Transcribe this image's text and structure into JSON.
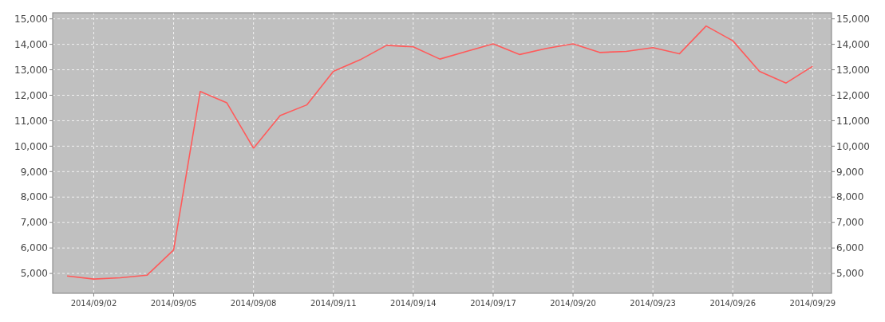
{
  "chart_data": {
    "type": "line",
    "x": [
      "2014-09-01",
      "2014-09-02",
      "2014-09-03",
      "2014-09-04",
      "2014-09-05",
      "2014-09-06",
      "2014-09-07",
      "2014-09-08",
      "2014-09-09",
      "2014-09-10",
      "2014-09-11",
      "2014-09-12",
      "2014-09-13",
      "2014-09-14",
      "2014-09-15",
      "2014-09-16",
      "2014-09-17",
      "2014-09-18",
      "2014-09-19",
      "2014-09-20",
      "2014-09-21",
      "2014-09-22",
      "2014-09-23",
      "2014-09-24",
      "2014-09-25",
      "2014-09-26",
      "2014-09-27",
      "2014-09-28",
      "2014-09-29"
    ],
    "series": [
      {
        "color": "#ff5a5a",
        "values": [
          4900,
          4780,
          4830,
          4930,
          5920,
          12150,
          11700,
          9920,
          11200,
          11620,
          12940,
          13390,
          13960,
          13900,
          13420,
          13720,
          14020,
          13600,
          13840,
          14020,
          13680,
          13720,
          13870,
          13630,
          14720,
          14140,
          12940,
          12480,
          13140
        ]
      }
    ],
    "xlim": [
      "2014-08-31T11:00",
      "2014-09-29T17:00"
    ],
    "xticks": [
      {
        "value": "2014-09-02",
        "label": "2014/09/02"
      },
      {
        "value": "2014-09-05",
        "label": "2014/09/05"
      },
      {
        "value": "2014-09-08",
        "label": "2014/09/08"
      },
      {
        "value": "2014-09-11",
        "label": "2014/09/11"
      },
      {
        "value": "2014-09-14",
        "label": "2014/09/14"
      },
      {
        "value": "2014-09-17",
        "label": "2014/09/17"
      },
      {
        "value": "2014-09-20",
        "label": "2014/09/20"
      },
      {
        "value": "2014-09-23",
        "label": "2014/09/23"
      },
      {
        "value": "2014-09-26",
        "label": "2014/09/26"
      },
      {
        "value": "2014-09-29",
        "label": "2014/09/29"
      }
    ],
    "ylim": [
      4220,
      15240
    ],
    "yticks": [
      {
        "value": 5000,
        "label": "5,000"
      },
      {
        "value": 6000,
        "label": "6,000"
      },
      {
        "value": 7000,
        "label": "7,000"
      },
      {
        "value": 8000,
        "label": "8,000"
      },
      {
        "value": 9000,
        "label": "9,000"
      },
      {
        "value": 10000,
        "label": "10,000"
      },
      {
        "value": 11000,
        "label": "11,000"
      },
      {
        "value": 12000,
        "label": "12,000"
      },
      {
        "value": 13000,
        "label": "13,000"
      },
      {
        "value": 14000,
        "label": "14,000"
      },
      {
        "value": 15000,
        "label": "15,000"
      }
    ],
    "y2lim": [
      4220,
      15240
    ],
    "y2ticks": [
      {
        "value": 5000,
        "label": "5,000"
      },
      {
        "value": 6000,
        "label": "6,000"
      },
      {
        "value": 7000,
        "label": "7,000"
      },
      {
        "value": 8000,
        "label": "8,000"
      },
      {
        "value": 9000,
        "label": "9,000"
      },
      {
        "value": 10000,
        "label": "10,000"
      },
      {
        "value": 11000,
        "label": "11,000"
      },
      {
        "value": 12000,
        "label": "12,000"
      },
      {
        "value": 13000,
        "label": "13,000"
      },
      {
        "value": 14000,
        "label": "14,000"
      },
      {
        "value": 15000,
        "label": "15,000"
      }
    ],
    "grid": true,
    "line_style": "solid"
  }
}
